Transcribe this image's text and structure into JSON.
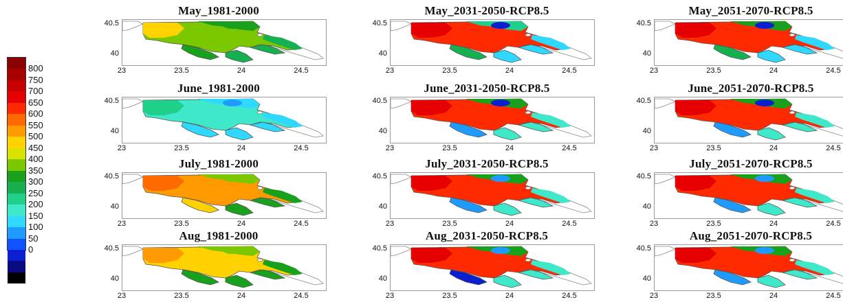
{
  "legend": {
    "labels": [
      "800",
      "750",
      "700",
      "650",
      "600",
      "550",
      "500",
      "450",
      "400",
      "350",
      "300",
      "250",
      "200",
      "150",
      "100",
      "50",
      "0"
    ],
    "colors": [
      "#8b0000",
      "#a80000",
      "#c80000",
      "#e60000",
      "#ff2a00",
      "#ff6a00",
      "#ff9a00",
      "#ffd200",
      "#d8e300",
      "#7cc800",
      "#19a01d",
      "#16b050",
      "#1fd08a",
      "#3ee8c8",
      "#2ed8ff",
      "#1f9bff",
      "#0f52ff",
      "#0a1fd0",
      "#0a0a80",
      "#000000"
    ]
  },
  "axes": {
    "y_ticks": [
      "40.5",
      "40"
    ],
    "x_ticks": [
      "23",
      "23.5",
      "24",
      "24.5"
    ]
  },
  "panels": [
    {
      "title": "May_1981-2000",
      "palette": {
        "base": "#7cc800",
        "west": "#ffd200",
        "north": "#19a01d",
        "peninsula": "#19a01d",
        "east": "#16b050",
        "spot": "#19a01d"
      }
    },
    {
      "title": "May_2031-2050-RCP8.5",
      "palette": {
        "base": "#ff2a00",
        "west": "#e60000",
        "north": "#1fd08a",
        "peninsula": "#16b050",
        "east": "#2ed8ff",
        "spot": "#0a1fd0"
      }
    },
    {
      "title": "May_2051-2070-RCP8.5",
      "palette": {
        "base": "#ff2a00",
        "west": "#e60000",
        "north": "#19a01d",
        "peninsula": "#16b050",
        "east": "#2ed8ff",
        "spot": "#0a1fd0"
      }
    },
    {
      "title": "June_1981-2000",
      "palette": {
        "base": "#3ee8c8",
        "west": "#1fd08a",
        "north": "#2ed8ff",
        "peninsula": "#2ed8ff",
        "east": "#2ed8ff",
        "spot": "#1f9bff"
      }
    },
    {
      "title": "June_2031-2050-RCP8.5",
      "palette": {
        "base": "#ff2a00",
        "west": "#e60000",
        "north": "#19a01d",
        "peninsula": "#1f9bff",
        "east": "#3ee8c8",
        "spot": "#0a1fd0"
      }
    },
    {
      "title": "June_2051-2070-RCP8.5",
      "palette": {
        "base": "#ff2a00",
        "west": "#e60000",
        "north": "#19a01d",
        "peninsula": "#1f9bff",
        "east": "#3ee8c8",
        "spot": "#0a1fd0"
      }
    },
    {
      "title": "July_1981-2000",
      "palette": {
        "base": "#ff9a00",
        "west": "#ff6a00",
        "north": "#7cc800",
        "peninsula": "#ffd200",
        "east": "#19a01d",
        "spot": "#7cc800"
      }
    },
    {
      "title": "July_2031-2050-RCP8.5",
      "palette": {
        "base": "#ff2a00",
        "west": "#e60000",
        "north": "#19a01d",
        "peninsula": "#1f9bff",
        "east": "#3ee8c8",
        "spot": "#1f9bff"
      }
    },
    {
      "title": "July_2051-2070-RCP8.5",
      "palette": {
        "base": "#ff2a00",
        "west": "#e60000",
        "north": "#19a01d",
        "peninsula": "#1f9bff",
        "east": "#3ee8c8",
        "spot": "#1f9bff"
      }
    },
    {
      "title": "Aug_1981-2000",
      "palette": {
        "base": "#ffd200",
        "west": "#ff9a00",
        "north": "#7cc800",
        "peninsula": "#19a01d",
        "east": "#19a01d",
        "spot": "#7cc800"
      }
    },
    {
      "title": "Aug_2031-2050-RCP8.5",
      "palette": {
        "base": "#ff2a00",
        "west": "#e60000",
        "north": "#19a01d",
        "peninsula": "#0a1fd0",
        "east": "#3ee8c8",
        "spot": "#1f9bff"
      }
    },
    {
      "title": "Aug_2051-2070-RCP8.5",
      "palette": {
        "base": "#ff2a00",
        "west": "#e60000",
        "north": "#19a01d",
        "peninsula": "#1f9bff",
        "east": "#3ee8c8",
        "spot": "#1f9bff"
      }
    }
  ]
}
